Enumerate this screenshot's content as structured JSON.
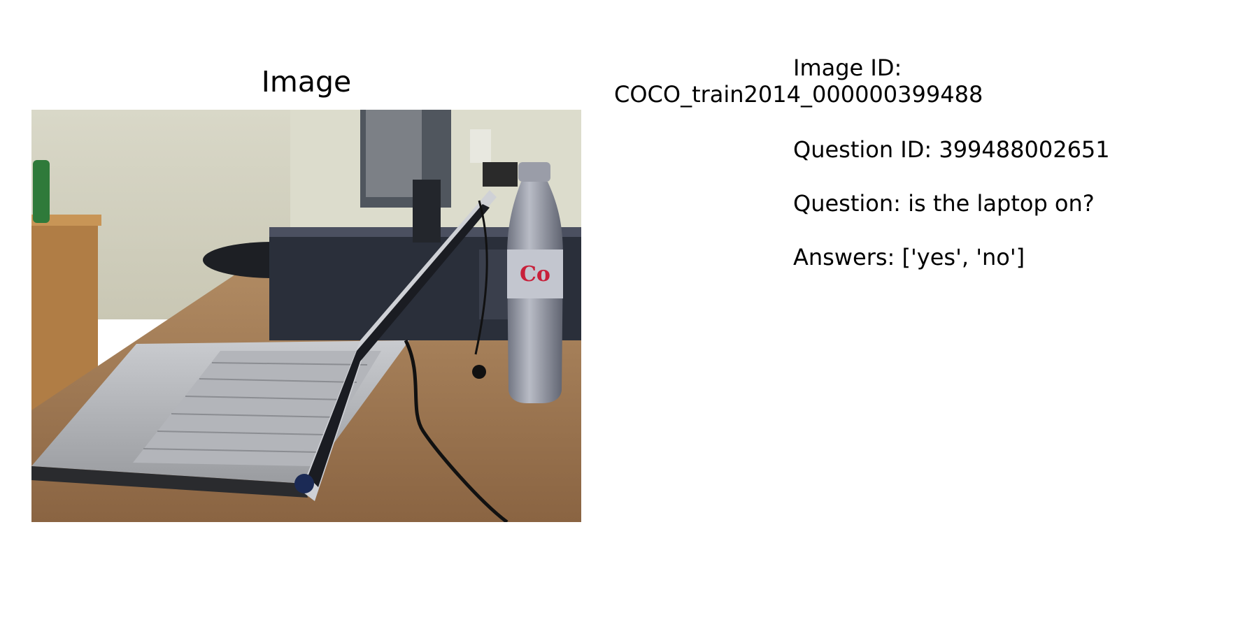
{
  "panel": {
    "title": "Image"
  },
  "info": {
    "image_id_label": "Image ID:",
    "image_id_value": "COCO_train2014_000000399488",
    "question_id": "Question ID: 399488002651",
    "question": "Question: is the laptop on?",
    "answers": "Answers: ['yes', 'no']"
  }
}
